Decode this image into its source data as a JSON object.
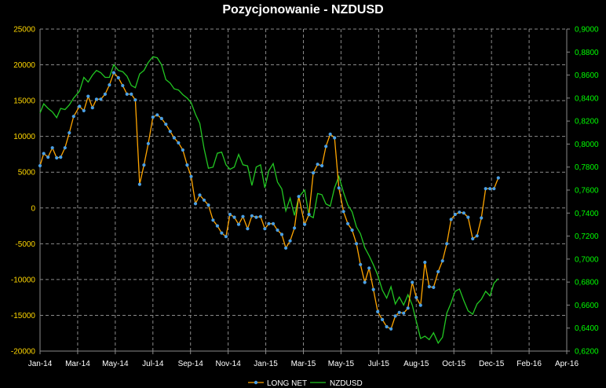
{
  "chart_data": {
    "type": "line",
    "title": "Pozycjonowanie - NZDUSD",
    "x_ticks": [
      "Jan-14",
      "Mar-14",
      "May-14",
      "Jul-14",
      "Sep-14",
      "Nov-14",
      "Jan-15",
      "Mar-15",
      "May-15",
      "Jul-15",
      "Aug-15",
      "Oct-15",
      "Dec-15",
      "Feb-16",
      "Apr-16"
    ],
    "x_range": [
      "2014-01-01",
      "2016-04-15"
    ],
    "y_left": {
      "min": -20000,
      "max": 25000,
      "step": 5000,
      "ticks": [
        "25000",
        "20000",
        "15000",
        "10000",
        "5000",
        "0",
        "-5000",
        "-10000",
        "-15000",
        "-20000"
      ]
    },
    "y_right": {
      "min": 0.62,
      "max": 0.9,
      "step": 0.02,
      "ticks": [
        "0,9000",
        "0,8800",
        "0,8600",
        "0,8400",
        "0,8200",
        "0,8000",
        "0,7800",
        "0,7600",
        "0,7400",
        "0,7200",
        "0,7000",
        "0,6800",
        "0,6600",
        "0,6400",
        "0,6200"
      ]
    },
    "grid": true,
    "legend_position": "bottom",
    "series": [
      {
        "name": "LONG NET",
        "axis": "left",
        "color": "#ffa500",
        "marker_color": "#4aa0e6",
        "points": [
          [
            "2014-01-01",
            5900
          ],
          [
            "2014-01-07",
            7600
          ],
          [
            "2014-01-14",
            7100
          ],
          [
            "2014-01-21",
            8400
          ],
          [
            "2014-01-28",
            7000
          ],
          [
            "2014-02-04",
            7100
          ],
          [
            "2014-02-11",
            8400
          ],
          [
            "2014-02-18",
            10500
          ],
          [
            "2014-02-25",
            12800
          ],
          [
            "2014-03-04",
            14200
          ],
          [
            "2014-03-11",
            13600
          ],
          [
            "2014-03-18",
            15600
          ],
          [
            "2014-03-25",
            14000
          ],
          [
            "2014-04-01",
            15200
          ],
          [
            "2014-04-08",
            15200
          ],
          [
            "2014-04-15",
            15900
          ],
          [
            "2014-04-22",
            17200
          ],
          [
            "2014-04-29",
            18900
          ],
          [
            "2014-05-06",
            18200
          ],
          [
            "2014-05-13",
            17100
          ],
          [
            "2014-05-20",
            15900
          ],
          [
            "2014-05-27",
            15900
          ],
          [
            "2014-06-03",
            15100
          ],
          [
            "2014-06-10",
            3300
          ],
          [
            "2014-06-17",
            6000
          ],
          [
            "2014-06-24",
            9000
          ],
          [
            "2014-07-01",
            12700
          ],
          [
            "2014-07-08",
            13000
          ],
          [
            "2014-07-15",
            12500
          ],
          [
            "2014-07-22",
            11700
          ],
          [
            "2014-07-29",
            10700
          ],
          [
            "2014-08-05",
            9800
          ],
          [
            "2014-08-12",
            9100
          ],
          [
            "2014-08-19",
            8100
          ],
          [
            "2014-08-26",
            6000
          ],
          [
            "2014-09-02",
            4400
          ],
          [
            "2014-09-09",
            600
          ],
          [
            "2014-09-16",
            1800
          ],
          [
            "2014-09-23",
            1100
          ],
          [
            "2014-09-30",
            400
          ],
          [
            "2014-10-07",
            -1700
          ],
          [
            "2014-10-14",
            -2500
          ],
          [
            "2014-10-21",
            -3500
          ],
          [
            "2014-10-28",
            -4000
          ],
          [
            "2014-11-04",
            -900
          ],
          [
            "2014-11-11",
            -1300
          ],
          [
            "2014-11-18",
            -2300
          ],
          [
            "2014-11-25",
            -1200
          ],
          [
            "2014-12-02",
            -2900
          ],
          [
            "2014-12-09",
            -1100
          ],
          [
            "2014-12-16",
            -1300
          ],
          [
            "2014-12-23",
            -1200
          ],
          [
            "2014-12-30",
            -2900
          ],
          [
            "2015-01-06",
            -2200
          ],
          [
            "2015-01-13",
            -2200
          ],
          [
            "2015-01-20",
            -3100
          ],
          [
            "2015-01-27",
            -3700
          ],
          [
            "2015-02-03",
            -5600
          ],
          [
            "2015-02-10",
            -4600
          ],
          [
            "2015-02-17",
            -2800
          ],
          [
            "2015-02-24",
            1600
          ],
          [
            "2015-03-03",
            -2300
          ],
          [
            "2015-03-10",
            -900
          ],
          [
            "2015-03-17",
            4900
          ],
          [
            "2015-03-24",
            6100
          ],
          [
            "2015-03-31",
            5900
          ],
          [
            "2015-04-07",
            8600
          ],
          [
            "2015-04-14",
            10300
          ],
          [
            "2015-04-21",
            9800
          ],
          [
            "2015-04-28",
            2800
          ],
          [
            "2015-05-05",
            -500
          ],
          [
            "2015-05-12",
            -2200
          ],
          [
            "2015-05-19",
            -3100
          ],
          [
            "2015-05-26",
            -5000
          ],
          [
            "2015-06-02",
            -7900
          ],
          [
            "2015-06-09",
            -10400
          ],
          [
            "2015-06-16",
            -8400
          ],
          [
            "2015-06-23",
            -11400
          ],
          [
            "2015-06-30",
            -14500
          ],
          [
            "2015-07-07",
            -15600
          ],
          [
            "2015-07-14",
            -16600
          ],
          [
            "2015-07-21",
            -16900
          ],
          [
            "2015-07-28",
            -15100
          ],
          [
            "2015-08-04",
            -14600
          ],
          [
            "2015-08-11",
            -14700
          ],
          [
            "2015-08-18",
            -14000
          ],
          [
            "2015-08-25",
            -10400
          ],
          [
            "2015-09-01",
            -12500
          ],
          [
            "2015-09-08",
            -13600
          ],
          [
            "2015-09-15",
            -7600
          ],
          [
            "2015-09-22",
            -11000
          ],
          [
            "2015-09-29",
            -11100
          ],
          [
            "2015-10-06",
            -8900
          ],
          [
            "2015-10-13",
            -7400
          ],
          [
            "2015-10-20",
            -5000
          ],
          [
            "2015-10-27",
            -1600
          ],
          [
            "2015-11-03",
            -900
          ],
          [
            "2015-11-10",
            -600
          ],
          [
            "2015-11-17",
            -700
          ],
          [
            "2015-11-24",
            -1300
          ],
          [
            "2015-12-01",
            -4300
          ],
          [
            "2015-12-08",
            -3900
          ],
          [
            "2015-12-15",
            -1400
          ],
          [
            "2015-12-22",
            2700
          ],
          [
            "2015-12-29",
            2700
          ],
          [
            "2016-01-05",
            2700
          ],
          [
            "2016-01-12",
            4200
          ]
        ]
      },
      {
        "name": "NZDUSD",
        "axis": "right",
        "color": "#22c722",
        "points": [
          [
            "2014-01-01",
            0.827
          ],
          [
            "2014-01-07",
            0.835
          ],
          [
            "2014-01-14",
            0.831
          ],
          [
            "2014-01-21",
            0.828
          ],
          [
            "2014-01-28",
            0.823
          ],
          [
            "2014-02-04",
            0.831
          ],
          [
            "2014-02-11",
            0.83
          ],
          [
            "2014-02-18",
            0.834
          ],
          [
            "2014-02-25",
            0.84
          ],
          [
            "2014-03-04",
            0.846
          ],
          [
            "2014-03-11",
            0.858
          ],
          [
            "2014-03-18",
            0.854
          ],
          [
            "2014-03-25",
            0.86
          ],
          [
            "2014-04-01",
            0.864
          ],
          [
            "2014-04-08",
            0.862
          ],
          [
            "2014-04-15",
            0.858
          ],
          [
            "2014-04-22",
            0.858
          ],
          [
            "2014-04-29",
            0.869
          ],
          [
            "2014-05-06",
            0.864
          ],
          [
            "2014-05-13",
            0.863
          ],
          [
            "2014-05-20",
            0.859
          ],
          [
            "2014-05-27",
            0.851
          ],
          [
            "2014-06-03",
            0.849
          ],
          [
            "2014-06-10",
            0.861
          ],
          [
            "2014-06-17",
            0.864
          ],
          [
            "2014-06-24",
            0.871
          ],
          [
            "2014-07-01",
            0.876
          ],
          [
            "2014-07-08",
            0.875
          ],
          [
            "2014-07-15",
            0.869
          ],
          [
            "2014-07-22",
            0.856
          ],
          [
            "2014-07-29",
            0.853
          ],
          [
            "2014-08-05",
            0.848
          ],
          [
            "2014-08-12",
            0.847
          ],
          [
            "2014-08-19",
            0.843
          ],
          [
            "2014-08-26",
            0.84
          ],
          [
            "2014-09-02",
            0.836
          ],
          [
            "2014-09-09",
            0.826
          ],
          [
            "2014-09-16",
            0.818
          ],
          [
            "2014-09-23",
            0.796
          ],
          [
            "2014-09-30",
            0.779
          ],
          [
            "2014-10-07",
            0.78
          ],
          [
            "2014-10-14",
            0.792
          ],
          [
            "2014-10-21",
            0.793
          ],
          [
            "2014-10-28",
            0.782
          ],
          [
            "2014-11-04",
            0.778
          ],
          [
            "2014-11-11",
            0.78
          ],
          [
            "2014-11-18",
            0.791
          ],
          [
            "2014-11-25",
            0.782
          ],
          [
            "2014-12-02",
            0.781
          ],
          [
            "2014-12-09",
            0.764
          ],
          [
            "2014-12-16",
            0.78
          ],
          [
            "2014-12-23",
            0.782
          ],
          [
            "2014-12-30",
            0.762
          ],
          [
            "2015-01-06",
            0.777
          ],
          [
            "2015-01-13",
            0.783
          ],
          [
            "2015-01-20",
            0.767
          ],
          [
            "2015-01-27",
            0.761
          ],
          [
            "2015-02-03",
            0.742
          ],
          [
            "2015-02-10",
            0.753
          ],
          [
            "2015-02-17",
            0.738
          ],
          [
            "2015-02-24",
            0.754
          ],
          [
            "2015-03-03",
            0.76
          ],
          [
            "2015-03-10",
            0.738
          ],
          [
            "2015-03-17",
            0.736
          ],
          [
            "2015-03-24",
            0.757
          ],
          [
            "2015-03-31",
            0.756
          ],
          [
            "2015-04-07",
            0.748
          ],
          [
            "2015-04-14",
            0.746
          ],
          [
            "2015-04-21",
            0.762
          ],
          [
            "2015-04-28",
            0.772
          ],
          [
            "2015-05-05",
            0.758
          ],
          [
            "2015-05-12",
            0.747
          ],
          [
            "2015-05-19",
            0.741
          ],
          [
            "2015-05-26",
            0.728
          ],
          [
            "2015-06-02",
            0.722
          ],
          [
            "2015-06-09",
            0.71
          ],
          [
            "2015-06-16",
            0.703
          ],
          [
            "2015-06-23",
            0.695
          ],
          [
            "2015-06-30",
            0.686
          ],
          [
            "2015-07-07",
            0.673
          ],
          [
            "2015-07-14",
            0.666
          ],
          [
            "2015-07-21",
            0.676
          ],
          [
            "2015-07-28",
            0.661
          ],
          [
            "2015-08-04",
            0.667
          ],
          [
            "2015-08-11",
            0.66
          ],
          [
            "2015-08-18",
            0.669
          ],
          [
            "2015-08-25",
            0.66
          ],
          [
            "2015-09-01",
            0.646
          ],
          [
            "2015-09-08",
            0.631
          ],
          [
            "2015-09-15",
            0.633
          ],
          [
            "2015-09-22",
            0.63
          ],
          [
            "2015-09-29",
            0.636
          ],
          [
            "2015-10-06",
            0.627
          ],
          [
            "2015-10-13",
            0.632
          ],
          [
            "2015-10-20",
            0.653
          ],
          [
            "2015-10-27",
            0.662
          ],
          [
            "2015-11-03",
            0.672
          ],
          [
            "2015-11-10",
            0.674
          ],
          [
            "2015-11-17",
            0.664
          ],
          [
            "2015-11-24",
            0.655
          ],
          [
            "2015-12-01",
            0.652
          ],
          [
            "2015-12-08",
            0.661
          ],
          [
            "2015-12-15",
            0.665
          ],
          [
            "2015-12-22",
            0.672
          ],
          [
            "2015-12-29",
            0.668
          ],
          [
            "2016-01-05",
            0.679
          ],
          [
            "2016-01-12",
            0.683
          ]
        ]
      }
    ]
  }
}
